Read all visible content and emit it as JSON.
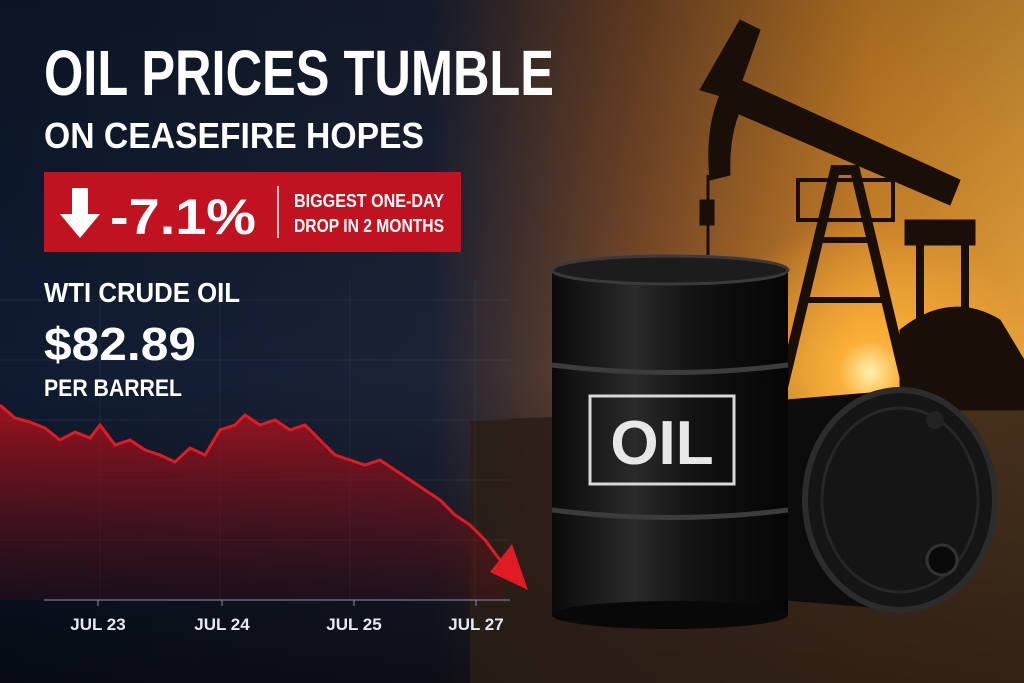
{
  "headline": "OIL PRICES TUMBLE",
  "subheadline": "ON CEASEFIRE HOPES",
  "badge": {
    "change": "-7.1%",
    "note_line1": "BIGGEST ONE-DAY",
    "note_line2": "DROP IN 2 MONTHS"
  },
  "commodity": "WTI CRUDE OIL",
  "price": "$82.89",
  "unit": "PER BARREL",
  "chart": {
    "x_labels": [
      "JUL 23",
      "JUL 24",
      "JUL 25",
      "JUL 27"
    ]
  },
  "barrel_label": "OIL"
}
